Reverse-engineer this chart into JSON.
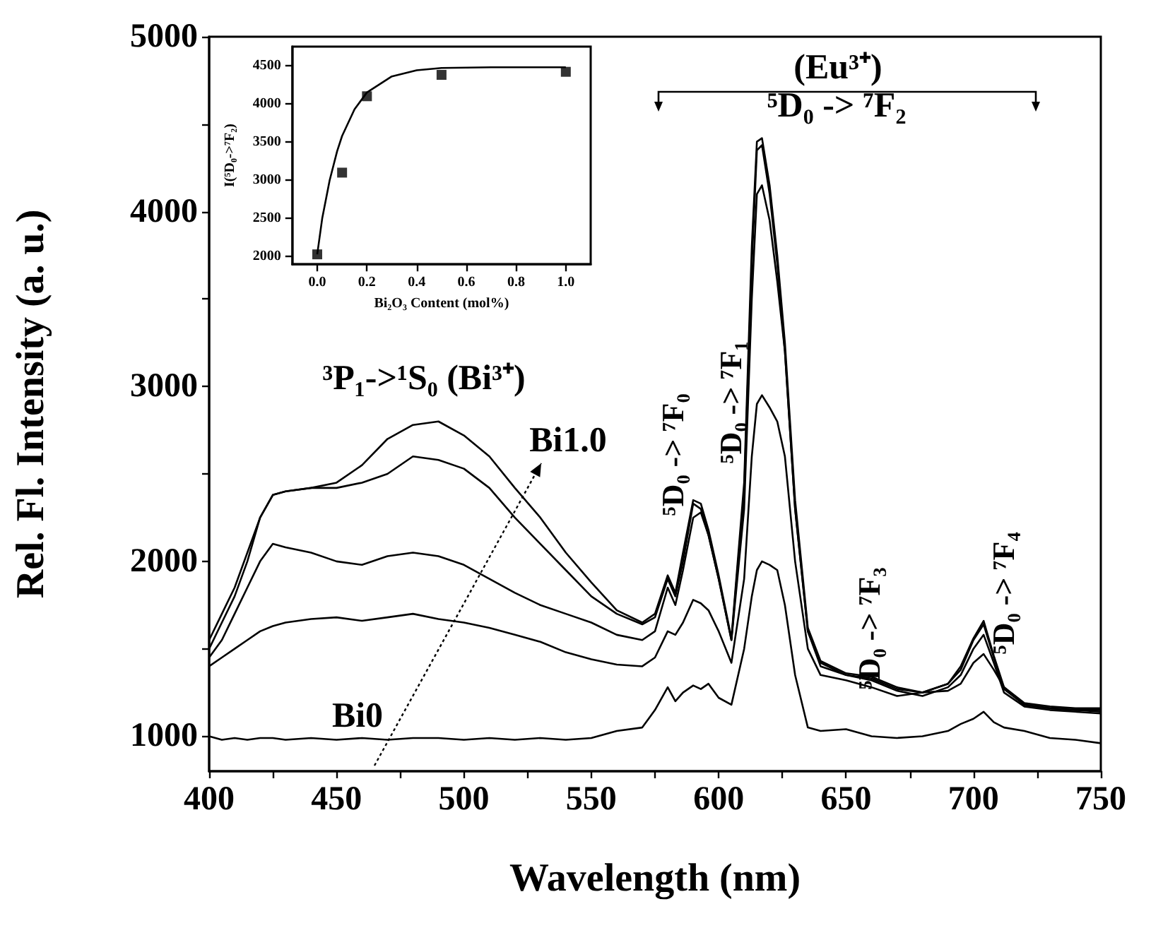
{
  "chart_data": [
    {
      "type": "line",
      "xlabel": "Wavelength (nm)",
      "ylabel": "Rel. Fl. Intensity (a. u.)",
      "xlim": [
        400,
        750
      ],
      "ylim": [
        800,
        5000
      ],
      "xticks": [
        400,
        {
          "value": 425,
          "label": null
        },
        450,
        {
          "value": 475,
          "label": null
        },
        500,
        {
          "value": 525,
          "label": null
        },
        550,
        {
          "value": 575,
          "label": null
        },
        600,
        {
          "value": 625,
          "label": null
        },
        650,
        {
          "value": 675,
          "label": null
        },
        700,
        {
          "value": 725,
          "label": null
        },
        750
      ],
      "yticks": [
        1000,
        {
          "value": 1500,
          "label": null
        },
        2000,
        {
          "value": 2500,
          "label": null
        },
        3000,
        {
          "value": 3500,
          "label": null
        },
        4000,
        {
          "value": 4500,
          "label": null
        },
        5000
      ],
      "grid": false,
      "marker": "none",
      "line_style": "solid",
      "x": [
        400,
        405,
        410,
        415,
        420,
        425,
        430,
        440,
        450,
        460,
        470,
        480,
        490,
        500,
        510,
        520,
        530,
        540,
        550,
        560,
        570,
        575,
        580,
        583,
        586,
        590,
        593,
        596,
        600,
        605,
        610,
        613,
        615,
        617,
        620,
        623,
        626,
        630,
        635,
        640,
        650,
        660,
        670,
        680,
        690,
        695,
        700,
        704,
        708,
        712,
        720,
        730,
        740,
        750
      ],
      "series": [
        {
          "color": "#000000",
          "values": [
            1000,
            980,
            990,
            980,
            990,
            990,
            980,
            990,
            980,
            990,
            980,
            990,
            990,
            980,
            990,
            980,
            990,
            980,
            990,
            1030,
            1050,
            1150,
            1280,
            1200,
            1250,
            1290,
            1270,
            1300,
            1220,
            1180,
            1500,
            1800,
            1950,
            2000,
            1980,
            1950,
            1750,
            1350,
            1050,
            1030,
            1040,
            1000,
            990,
            1000,
            1030,
            1070,
            1100,
            1140,
            1080,
            1050,
            1030,
            990,
            980,
            960
          ]
        },
        {
          "color": "#000000",
          "values": [
            1400,
            1450,
            1500,
            1550,
            1600,
            1630,
            1650,
            1670,
            1680,
            1660,
            1680,
            1700,
            1670,
            1650,
            1620,
            1580,
            1540,
            1480,
            1440,
            1410,
            1400,
            1450,
            1600,
            1580,
            1650,
            1780,
            1760,
            1720,
            1600,
            1420,
            1900,
            2600,
            2900,
            2950,
            2880,
            2800,
            2600,
            2000,
            1500,
            1350,
            1320,
            1280,
            1230,
            1250,
            1260,
            1300,
            1420,
            1470,
            1380,
            1280,
            1180,
            1160,
            1150,
            1140
          ]
        },
        {
          "color": "#000000",
          "values": [
            1450,
            1550,
            1700,
            1850,
            2000,
            2100,
            2080,
            2050,
            2000,
            1980,
            2030,
            2050,
            2030,
            1980,
            1900,
            1820,
            1750,
            1700,
            1650,
            1580,
            1550,
            1600,
            1850,
            1750,
            1950,
            2250,
            2280,
            2150,
            1900,
            1550,
            2300,
            3500,
            4100,
            4150,
            3950,
            3600,
            3200,
            2300,
            1600,
            1400,
            1350,
            1320,
            1260,
            1230,
            1280,
            1350,
            1500,
            1580,
            1420,
            1250,
            1170,
            1150,
            1140,
            1130
          ]
        },
        {
          "color": "#000000",
          "values": [
            1550,
            1700,
            1850,
            2050,
            2250,
            2380,
            2400,
            2420,
            2420,
            2450,
            2500,
            2600,
            2580,
            2530,
            2420,
            2250,
            2100,
            1950,
            1800,
            1700,
            1640,
            1680,
            1900,
            1800,
            2000,
            2330,
            2300,
            2150,
            1900,
            1550,
            2400,
            3700,
            4350,
            4380,
            4100,
            3700,
            3200,
            2300,
            1600,
            1420,
            1350,
            1330,
            1270,
            1250,
            1300,
            1380,
            1550,
            1640,
            1450,
            1270,
            1180,
            1160,
            1150,
            1150
          ]
        },
        {
          "color": "#000000",
          "values": [
            1500,
            1650,
            1800,
            2000,
            2250,
            2380,
            2400,
            2420,
            2450,
            2550,
            2700,
            2780,
            2800,
            2720,
            2600,
            2420,
            2250,
            2050,
            1880,
            1720,
            1650,
            1700,
            1920,
            1820,
            2050,
            2350,
            2330,
            2180,
            1920,
            1560,
            2450,
            3800,
            4400,
            4420,
            4150,
            3750,
            3250,
            2350,
            1620,
            1430,
            1360,
            1340,
            1280,
            1250,
            1300,
            1400,
            1560,
            1660,
            1460,
            1280,
            1190,
            1170,
            1160,
            1160
          ]
        }
      ],
      "annotations": [
        "(Eu³⁺)",
        "⁵D₀ -> ⁷F₂",
        "⁵D₀ -> ⁷F₀",
        "⁵D₀ -> ⁷F₁",
        "⁵D₀ -> ⁷F₃",
        "⁵D₀ -> ⁷F₄",
        "³P₁->¹S₀ (Bi³⁺)",
        "Bi0",
        "Bi1.0"
      ]
    },
    {
      "type": "scatter",
      "xlabel": "Bi₂O₃ Content (mol%)",
      "ylabel": "I(⁵D₀->⁷F₂)",
      "xlim": [
        -0.1,
        1.1
      ],
      "ylim": [
        1900,
        4750
      ],
      "xticks": [
        {
          "value": 0,
          "label": "0.0"
        },
        {
          "value": 0.2,
          "label": "0.2"
        },
        {
          "value": 0.4,
          "label": "0.4"
        },
        {
          "value": 0.6,
          "label": "0.6"
        },
        {
          "value": 0.8,
          "label": "0.8"
        },
        {
          "value": 1,
          "label": "1.0"
        }
      ],
      "yticks": [
        2000,
        2500,
        3000,
        3500,
        4000,
        4500
      ],
      "grid": false,
      "series": [
        {
          "marker": "square",
          "color": "#000000",
          "x": [
            0,
            0.1,
            0.2,
            0.5,
            1.0
          ],
          "values": [
            2030,
            3100,
            4100,
            4380,
            4420
          ]
        },
        {
          "type": "line",
          "marker": "none",
          "line_style": "solid",
          "color": "#000000",
          "x": [
            0,
            0.02,
            0.05,
            0.08,
            0.1,
            0.15,
            0.2,
            0.3,
            0.4,
            0.5,
            0.7,
            1.0
          ],
          "values": [
            2030,
            2500,
            3000,
            3380,
            3580,
            3930,
            4150,
            4360,
            4440,
            4470,
            4480,
            4480
          ]
        }
      ]
    }
  ]
}
